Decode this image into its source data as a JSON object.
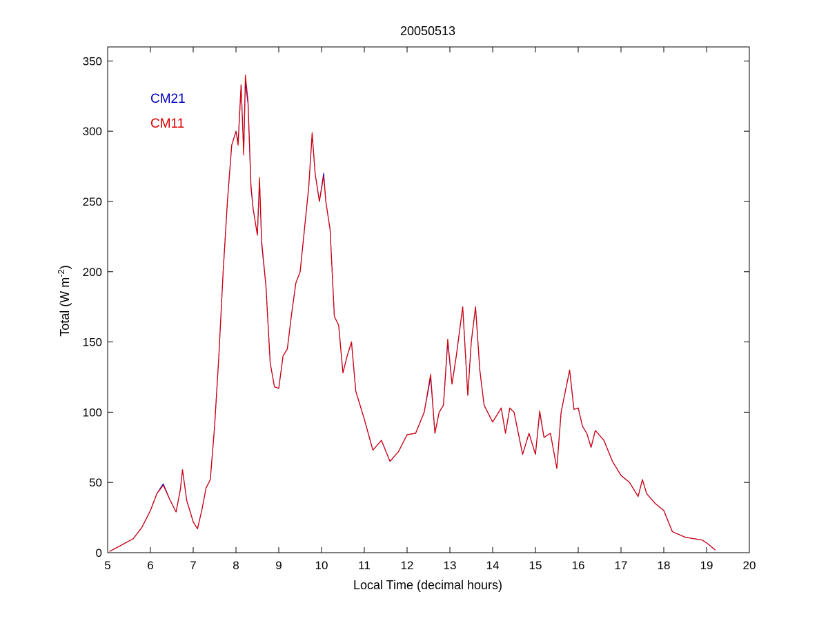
{
  "chart_data": {
    "type": "line",
    "title": "20050513",
    "xlabel": "Local Time (decimal hours)",
    "ylabel_main": "Total (W m",
    "ylabel_sup": "-2",
    "ylabel_close": ")",
    "xlim": [
      5,
      20
    ],
    "ylim": [
      0,
      360
    ],
    "xticks": [
      5,
      6,
      7,
      8,
      9,
      10,
      11,
      12,
      13,
      14,
      15,
      16,
      17,
      18,
      19,
      20
    ],
    "yticks": [
      0,
      50,
      100,
      150,
      200,
      250,
      300,
      350
    ],
    "grid": false,
    "legend_position": "top-left",
    "series": [
      {
        "name": "CM21",
        "color": "#0000c0",
        "x": [
          5.05,
          5.3,
          5.6,
          5.8,
          6.0,
          6.15,
          6.3,
          6.45,
          6.6,
          6.7,
          6.75,
          6.85,
          7.0,
          7.1,
          7.2,
          7.3,
          7.4,
          7.5,
          7.6,
          7.7,
          7.8,
          7.9,
          8.0,
          8.05,
          8.12,
          8.18,
          8.22,
          8.28,
          8.35,
          8.4,
          8.5,
          8.55,
          8.6,
          8.7,
          8.8,
          8.9,
          9.0,
          9.1,
          9.2,
          9.3,
          9.4,
          9.5,
          9.6,
          9.7,
          9.78,
          9.85,
          9.95,
          10.05,
          10.1,
          10.2,
          10.3,
          10.4,
          10.5,
          10.6,
          10.7,
          10.8,
          10.9,
          11.0,
          11.2,
          11.4,
          11.6,
          11.8,
          12.0,
          12.2,
          12.4,
          12.55,
          12.65,
          12.75,
          12.85,
          12.95,
          13.05,
          13.15,
          13.3,
          13.42,
          13.5,
          13.6,
          13.7,
          13.8,
          14.0,
          14.2,
          14.3,
          14.4,
          14.5,
          14.7,
          14.85,
          15.0,
          15.1,
          15.2,
          15.35,
          15.5,
          15.6,
          15.8,
          15.9,
          16.0,
          16.1,
          16.2,
          16.3,
          16.4,
          16.6,
          16.8,
          17.0,
          17.2,
          17.4,
          17.5,
          17.6,
          17.8,
          18.0,
          18.2,
          18.5,
          18.9,
          19.0,
          19.2
        ],
        "y": [
          1,
          5,
          10,
          18,
          30,
          42,
          49,
          38,
          29,
          45,
          59,
          37,
          22,
          17,
          30,
          46,
          52,
          90,
          140,
          200,
          250,
          290,
          300,
          292,
          333,
          285,
          335,
          320,
          260,
          245,
          226,
          265,
          220,
          190,
          135,
          118,
          117,
          140,
          145,
          170,
          192,
          200,
          230,
          260,
          298,
          270,
          250,
          270,
          250,
          230,
          168,
          162,
          128,
          140,
          150,
          115,
          105,
          95,
          73,
          80,
          65,
          72,
          84,
          85,
          100,
          125,
          85,
          100,
          105,
          150,
          120,
          140,
          175,
          112,
          150,
          175,
          130,
          105,
          93,
          103,
          85,
          103,
          100,
          70,
          85,
          70,
          100,
          82,
          85,
          60,
          100,
          130,
          102,
          103,
          90,
          85,
          75,
          87,
          80,
          65,
          55,
          50,
          40,
          52,
          42,
          35,
          30,
          15,
          11,
          9,
          7,
          2
        ]
      },
      {
        "name": "CM11",
        "color": "#dd0000",
        "x": [
          5.05,
          5.3,
          5.6,
          5.8,
          6.0,
          6.15,
          6.3,
          6.45,
          6.6,
          6.7,
          6.75,
          6.85,
          7.0,
          7.1,
          7.2,
          7.3,
          7.4,
          7.5,
          7.6,
          7.7,
          7.8,
          7.9,
          8.0,
          8.05,
          8.12,
          8.18,
          8.22,
          8.28,
          8.35,
          8.4,
          8.5,
          8.55,
          8.6,
          8.7,
          8.8,
          8.9,
          9.0,
          9.1,
          9.2,
          9.3,
          9.4,
          9.5,
          9.6,
          9.7,
          9.78,
          9.85,
          9.95,
          10.05,
          10.1,
          10.2,
          10.3,
          10.4,
          10.5,
          10.6,
          10.7,
          10.8,
          10.9,
          11.0,
          11.2,
          11.4,
          11.6,
          11.8,
          12.0,
          12.2,
          12.4,
          12.55,
          12.65,
          12.75,
          12.85,
          12.95,
          13.05,
          13.15,
          13.3,
          13.42,
          13.5,
          13.6,
          13.7,
          13.8,
          14.0,
          14.2,
          14.3,
          14.4,
          14.5,
          14.7,
          14.85,
          15.0,
          15.1,
          15.2,
          15.35,
          15.5,
          15.6,
          15.8,
          15.9,
          16.0,
          16.1,
          16.2,
          16.3,
          16.4,
          16.6,
          16.8,
          17.0,
          17.2,
          17.4,
          17.5,
          17.6,
          17.8,
          18.0,
          18.2,
          18.5,
          18.9,
          19.0,
          19.2
        ],
        "y": [
          1,
          5,
          10,
          18,
          30,
          42,
          48,
          38,
          29,
          45,
          59,
          37,
          22,
          17,
          30,
          46,
          52,
          90,
          140,
          200,
          250,
          290,
          300,
          290,
          333,
          283,
          340,
          322,
          262,
          245,
          226,
          267,
          222,
          190,
          135,
          118,
          117,
          140,
          145,
          170,
          192,
          200,
          230,
          260,
          299,
          270,
          250,
          268,
          250,
          230,
          168,
          162,
          128,
          140,
          150,
          115,
          105,
          95,
          73,
          80,
          65,
          72,
          84,
          85,
          100,
          127,
          85,
          100,
          105,
          152,
          120,
          140,
          175,
          112,
          150,
          175,
          130,
          105,
          93,
          103,
          85,
          103,
          100,
          70,
          85,
          70,
          101,
          82,
          85,
          60,
          100,
          130,
          102,
          103,
          90,
          85,
          75,
          87,
          80,
          65,
          55,
          50,
          40,
          52,
          42,
          35,
          30,
          15,
          11,
          9,
          7,
          2
        ]
      }
    ]
  }
}
